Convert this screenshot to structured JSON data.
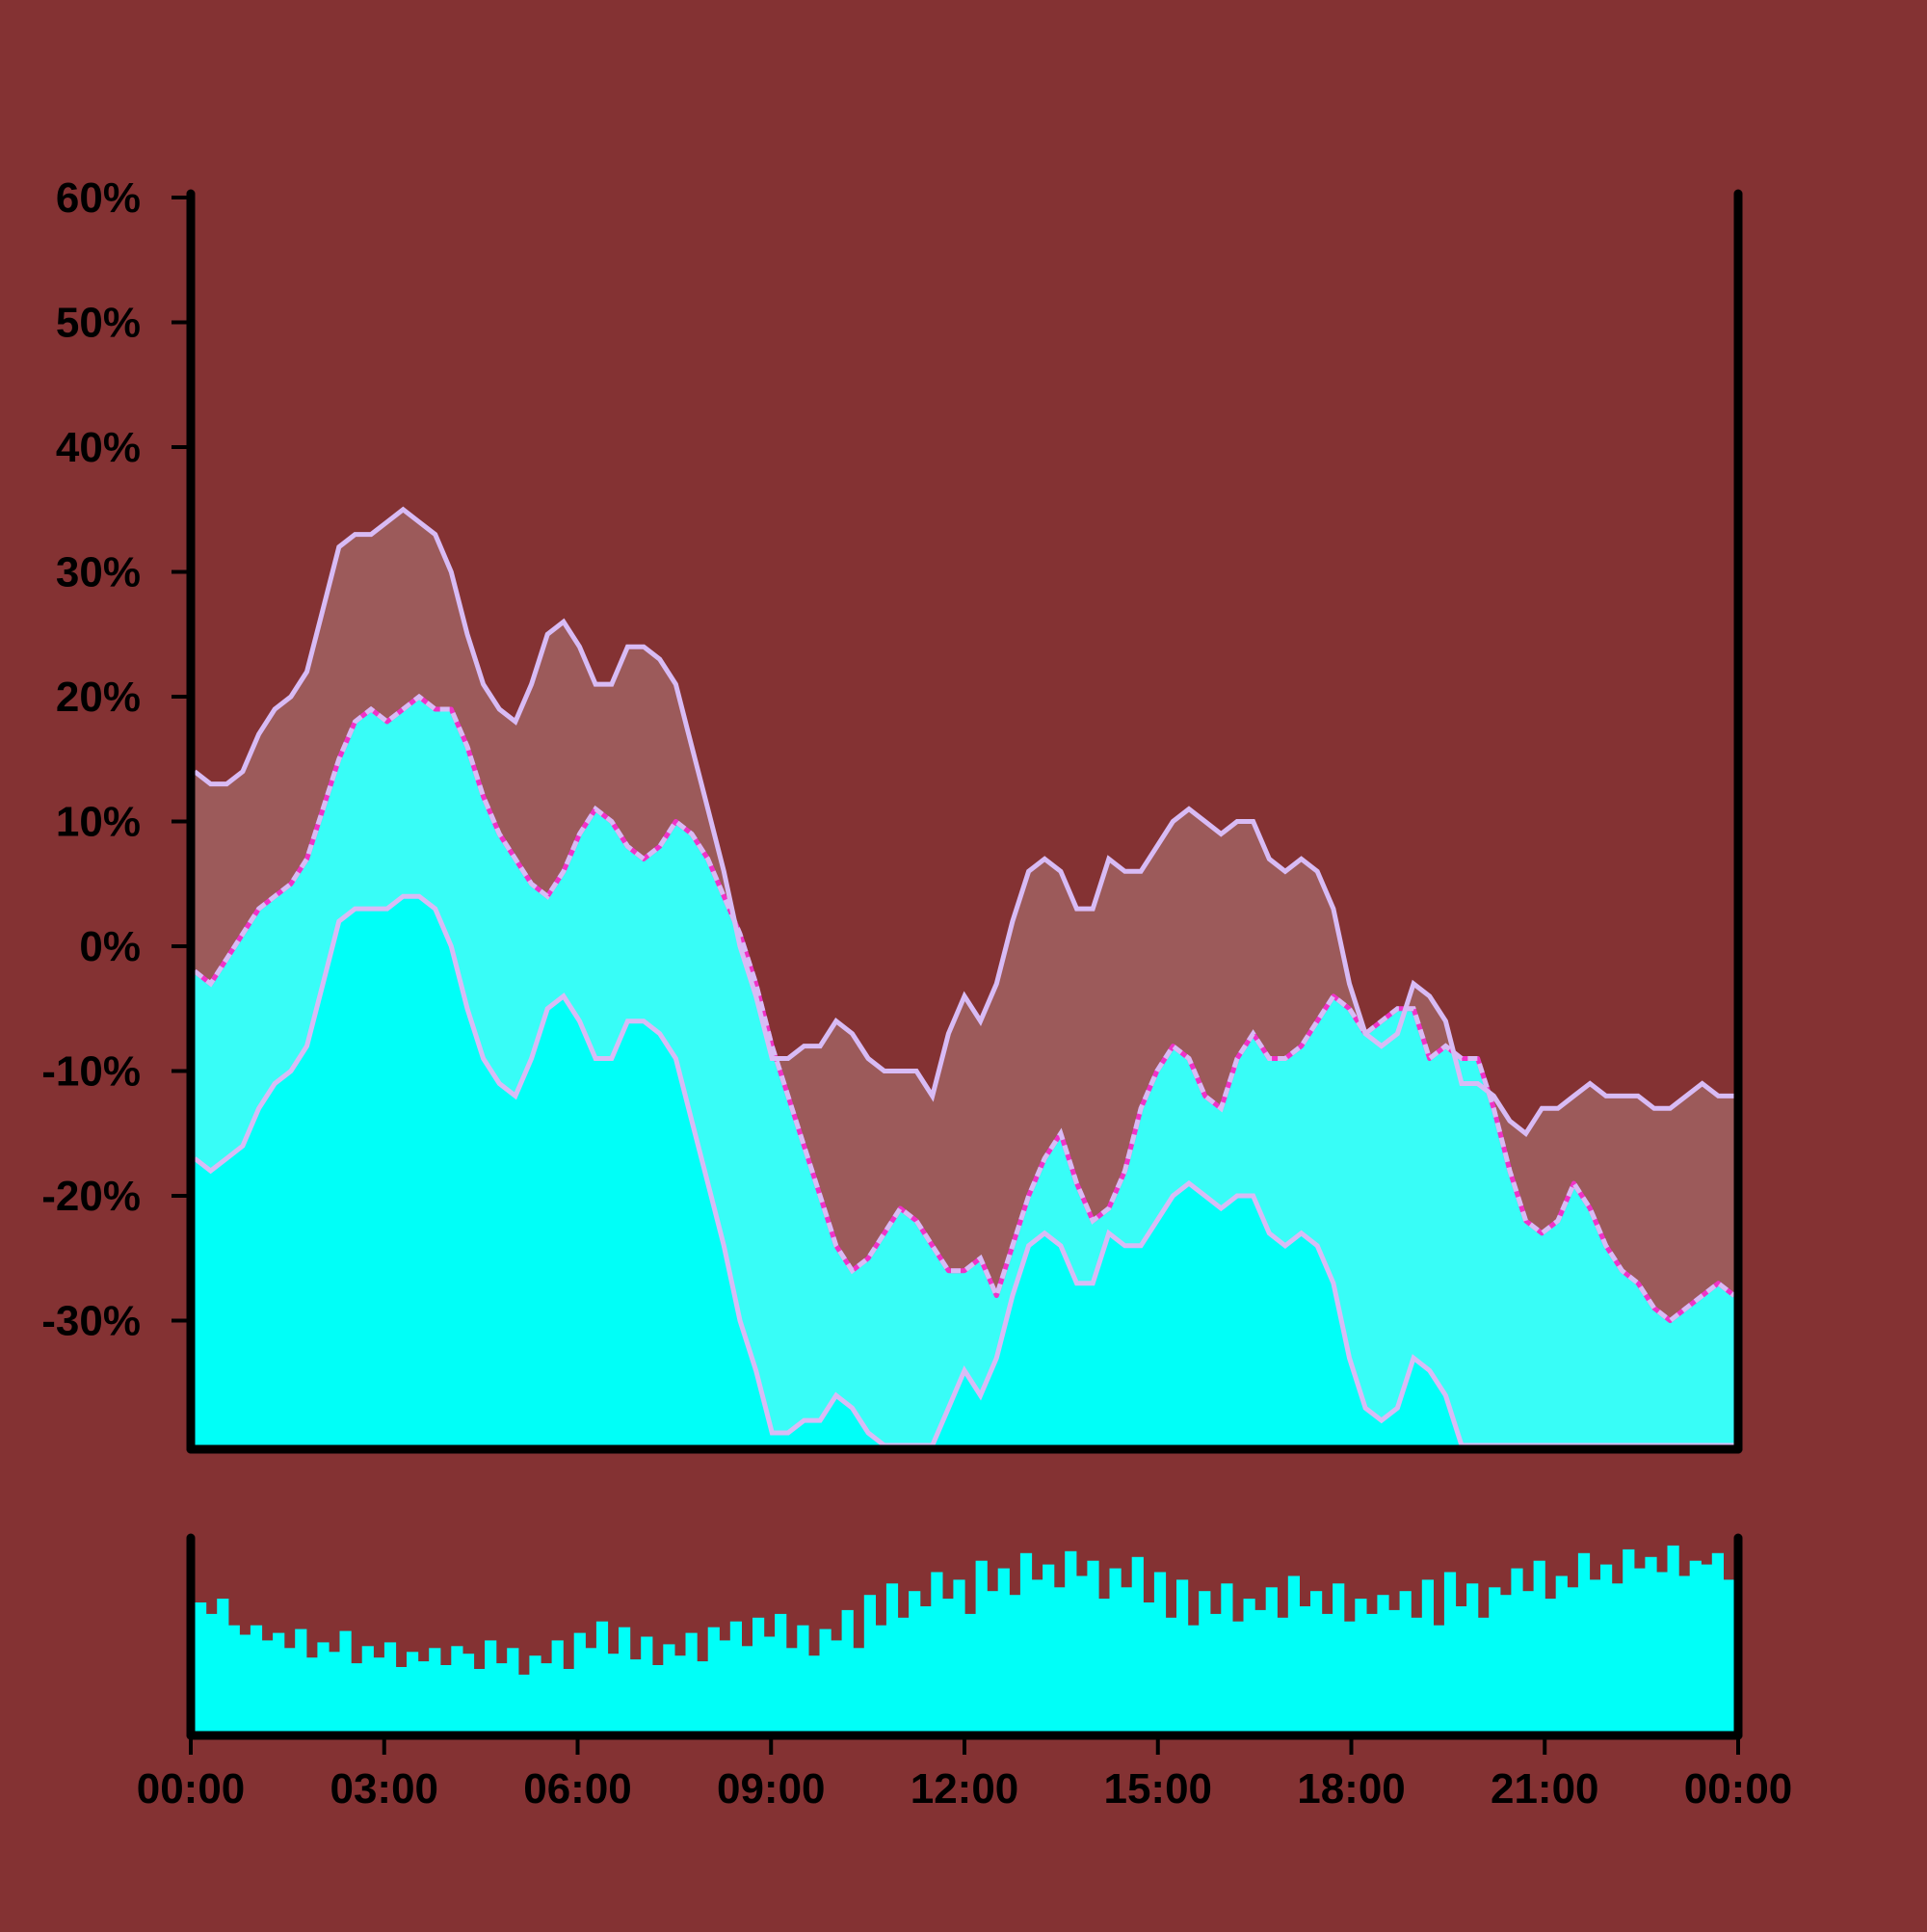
{
  "colors": {
    "background": "#843233",
    "band_fill": "#9c5a5a",
    "envelope_line": "#d8bbf5",
    "price_area": "#38fdf7",
    "price_base": "#00fff8",
    "price_line": "#f032c8",
    "volume_bar": "#00fff8",
    "axis": "#000000"
  },
  "chart_data": [
    {
      "type": "area",
      "panel": "price",
      "x": [
        "00:00",
        "00:15",
        "00:30",
        "00:45",
        "01:00",
        "01:15",
        "01:30",
        "01:45",
        "02:00",
        "02:15",
        "02:30",
        "02:45",
        "03:00",
        "03:15",
        "03:30",
        "03:45",
        "04:00",
        "04:15",
        "04:30",
        "04:45",
        "05:00",
        "05:15",
        "05:30",
        "05:45",
        "06:00",
        "06:15",
        "06:30",
        "06:45",
        "07:00",
        "07:15",
        "07:30",
        "07:45",
        "08:00",
        "08:15",
        "08:30",
        "08:45",
        "09:00",
        "09:15",
        "09:30",
        "09:45",
        "10:00",
        "10:15",
        "10:30",
        "10:45",
        "11:00",
        "11:15",
        "11:30",
        "11:45",
        "12:00",
        "12:15",
        "12:30",
        "12:45",
        "13:00",
        "13:15",
        "13:30",
        "13:45",
        "14:00",
        "14:15",
        "14:30",
        "14:45",
        "15:00",
        "15:15",
        "15:30",
        "15:45",
        "16:00",
        "16:15",
        "16:30",
        "16:45",
        "17:00",
        "17:15",
        "17:30",
        "17:45",
        "18:00",
        "18:15",
        "18:30",
        "18:45",
        "19:00",
        "19:15",
        "19:30",
        "19:45",
        "20:00",
        "20:15",
        "20:30",
        "20:45",
        "21:00",
        "21:15",
        "21:30",
        "21:45",
        "22:00",
        "22:15",
        "22:30",
        "22:45",
        "23:00",
        "23:15",
        "23:30",
        "23:45",
        "24:00"
      ],
      "series": [
        {
          "values": [
            -2,
            -3,
            -1,
            1,
            3,
            4,
            5,
            7,
            11,
            15,
            18,
            19,
            18,
            19,
            20,
            19,
            19,
            16,
            12,
            9,
            7,
            5,
            4,
            6,
            9,
            11,
            10,
            8,
            7,
            8,
            10,
            9,
            7,
            4,
            1,
            -3,
            -8,
            -12,
            -16,
            -20,
            -24,
            -26,
            -25,
            -23,
            -21,
            -22,
            -24,
            -26,
            -26,
            -25,
            -28,
            -24,
            -20,
            -17,
            -15,
            -19,
            -22,
            -21,
            -18,
            -13,
            -10,
            -8,
            -9,
            -12,
            -13,
            -9,
            -7,
            -9,
            -9,
            -8,
            -6,
            -4,
            -5,
            -7,
            -6,
            -5,
            -5,
            -9,
            -8,
            -9,
            -9,
            -13,
            -18,
            -22,
            -23,
            -22,
            -19,
            -21,
            -24,
            -26,
            -27,
            -29,
            -30,
            -29,
            -28,
            -27,
            -28
          ]
        },
        {
          "values": [
            -2,
            -3,
            -1,
            1,
            3,
            4,
            5,
            7,
            11,
            15,
            18,
            19,
            18,
            19,
            20,
            19,
            19,
            16,
            12,
            9,
            7,
            5,
            4,
            6,
            9,
            11,
            10,
            8,
            7,
            8,
            10,
            9,
            7,
            4,
            1,
            -3,
            -8,
            -12,
            -16,
            -20,
            -24,
            -26,
            -25,
            -23,
            -21,
            -22,
            -24,
            -26,
            -26,
            -25,
            -28,
            -24,
            -20,
            -17,
            -15,
            -19,
            -22,
            -21,
            -18,
            -13,
            -10,
            -8,
            -9,
            -12,
            -13,
            -9,
            -7,
            -9,
            -9,
            -8,
            -6,
            -4,
            -5,
            -7,
            -6,
            -5,
            -5,
            -9,
            -8,
            -9,
            -9,
            -13,
            -18,
            -22,
            -23,
            -22,
            -19,
            -21,
            -24,
            -26,
            -27,
            -29,
            -30,
            -29,
            -28,
            -27,
            -28
          ]
        },
        {
          "values": [
            14,
            13,
            13,
            14,
            17,
            19,
            20,
            22,
            27,
            32,
            33,
            33,
            34,
            35,
            34,
            33,
            30,
            25,
            21,
            19,
            18,
            21,
            25,
            26,
            24,
            21,
            21,
            24,
            24,
            23,
            21,
            16,
            11,
            6,
            0,
            -4,
            -9,
            -9,
            -8,
            -8,
            -6,
            -7,
            -9,
            -10,
            -10,
            -10,
            -12,
            -7,
            -4,
            -6,
            -3,
            2,
            6,
            7,
            6,
            3,
            3,
            7,
            6,
            6,
            8,
            10,
            11,
            10,
            9,
            10,
            10,
            7,
            6,
            7,
            6,
            3,
            -3,
            -7,
            -8,
            -7,
            -3,
            -4,
            -6,
            -11,
            -11,
            -12,
            -14,
            -15,
            -13,
            -13,
            -12,
            -11,
            -12,
            -12,
            -12,
            -13,
            -13,
            -12,
            -11,
            -12,
            -12
          ]
        },
        {
          "values": [
            -17,
            -18,
            -17,
            -16,
            -13,
            -11,
            -10,
            -8,
            -3,
            2,
            3,
            3,
            3,
            4,
            4,
            3,
            0,
            -5,
            -9,
            -11,
            -12,
            -9,
            -5,
            -4,
            -6,
            -9,
            -9,
            -6,
            -6,
            -7,
            -9,
            -14,
            -19,
            -24,
            -30,
            -34,
            -39,
            -39,
            -38,
            -38,
            -36,
            -37,
            -39,
            -40,
            -40,
            -40,
            -42,
            -37,
            -34,
            -36,
            -33,
            -28,
            -24,
            -23,
            -24,
            -27,
            -27,
            -23,
            -24,
            -24,
            -22,
            -20,
            -19,
            -20,
            -21,
            -20,
            -20,
            -23,
            -24,
            -23,
            -24,
            -27,
            -33,
            -37,
            -38,
            -37,
            -33,
            -34,
            -36,
            -41,
            -41,
            -42,
            -44,
            -45,
            -43,
            -43,
            -42,
            -41,
            -42,
            -42,
            -42,
            -43,
            -43,
            -42,
            -41,
            -42,
            -42
          ]
        }
      ],
      "ylim": [
        -40,
        60
      ],
      "yticks": [
        60,
        50,
        40,
        30,
        20,
        10,
        0,
        -10,
        -20,
        -30
      ],
      "ytick_labels": [
        "60%",
        "50%",
        "40%",
        "30%",
        "20%",
        "10%",
        "0%",
        "-10%",
        "-20%",
        "-30%"
      ],
      "grid": false,
      "legend": "none"
    },
    {
      "type": "bar",
      "panel": "volume",
      "values": [
        0.68,
        0.62,
        0.7,
        0.56,
        0.51,
        0.56,
        0.48,
        0.52,
        0.44,
        0.54,
        0.39,
        0.47,
        0.42,
        0.53,
        0.36,
        0.45,
        0.39,
        0.47,
        0.34,
        0.42,
        0.37,
        0.44,
        0.35,
        0.45,
        0.41,
        0.33,
        0.48,
        0.36,
        0.44,
        0.3,
        0.4,
        0.36,
        0.48,
        0.33,
        0.52,
        0.44,
        0.58,
        0.41,
        0.55,
        0.38,
        0.5,
        0.35,
        0.46,
        0.4,
        0.52,
        0.37,
        0.55,
        0.48,
        0.58,
        0.45,
        0.6,
        0.5,
        0.62,
        0.44,
        0.56,
        0.4,
        0.54,
        0.48,
        0.64,
        0.44,
        0.72,
        0.56,
        0.78,
        0.6,
        0.74,
        0.66,
        0.84,
        0.7,
        0.8,
        0.62,
        0.9,
        0.74,
        0.86,
        0.72,
        0.94,
        0.8,
        0.88,
        0.76,
        0.95,
        0.82,
        0.9,
        0.7,
        0.86,
        0.76,
        0.92,
        0.68,
        0.84,
        0.6,
        0.8,
        0.56,
        0.74,
        0.62,
        0.78,
        0.58,
        0.7,
        0.64,
        0.76,
        0.6,
        0.82,
        0.66,
        0.74,
        0.62,
        0.78,
        0.58,
        0.7,
        0.62,
        0.72,
        0.64,
        0.74,
        0.6,
        0.8,
        0.56,
        0.84,
        0.66,
        0.78,
        0.6,
        0.76,
        0.72,
        0.86,
        0.74,
        0.9,
        0.7,
        0.82,
        0.76,
        0.94,
        0.8,
        0.88,
        0.78,
        0.96,
        0.86,
        0.92,
        0.84,
        0.98,
        0.82,
        0.9,
        0.88,
        0.94,
        0.8
      ]
    }
  ],
  "x_axis": {
    "tick_labels": [
      "00:00",
      "03:00",
      "06:00",
      "09:00",
      "12:00",
      "15:00",
      "18:00",
      "21:00",
      "00:00"
    ]
  }
}
